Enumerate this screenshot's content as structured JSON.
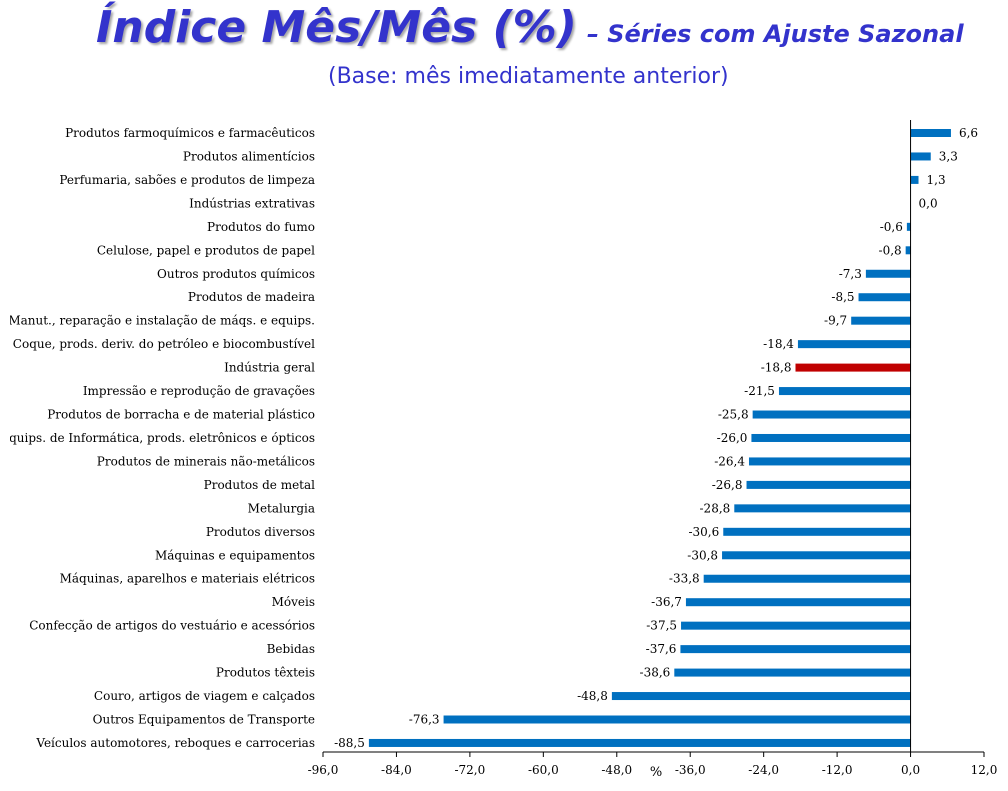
{
  "header": {
    "title": "Índice Mês/Mês (%)",
    "title_suffix": "– Séries com Ajuste Sazonal",
    "subtitle": "(Base: mês imediatamente anterior)"
  },
  "chart_data": {
    "type": "bar",
    "orientation": "horizontal",
    "categories": [
      "Produtos farmoquímicos e farmacêuticos",
      "Produtos alimentícios",
      "Perfumaria, sabões e produtos de limpeza",
      "Indústrias extrativas",
      "Produtos do fumo",
      "Celulose, papel e produtos de papel",
      "Outros produtos químicos",
      "Produtos de madeira",
      "Manut., reparação e instalação de máqs. e equips.",
      "Coque, prods. deriv. do petróleo e biocombustível",
      "Indústria geral",
      "Impressão e reprodução de gravações",
      "Produtos de borracha e de material plástico",
      "Equips. de Informática, prods. eletrônicos e ópticos",
      "Produtos de minerais não-metálicos",
      "Produtos de metal",
      "Metalurgia",
      "Produtos diversos",
      "Máquinas e equipamentos",
      "Máquinas, aparelhos e materiais elétricos",
      "Móveis",
      "Confecção de artigos do vestuário e acessórios",
      "Bebidas",
      "Produtos têxteis",
      "Couro, artigos de viagem e calçados",
      "Outros Equipamentos de Transporte",
      "Veículos automotores, reboques e carrocerias"
    ],
    "values": [
      6.6,
      3.3,
      1.3,
      0.0,
      -0.6,
      -0.8,
      -7.3,
      -8.5,
      -9.7,
      -18.4,
      -18.8,
      -21.5,
      -25.8,
      -26.0,
      -26.4,
      -26.8,
      -28.8,
      -30.6,
      -30.8,
      -33.8,
      -36.7,
      -37.5,
      -37.6,
      -38.6,
      -48.8,
      -76.3,
      -88.5
    ],
    "value_labels": [
      "6,6",
      "3,3",
      "1,3",
      "0,0",
      "-0,6",
      "-0,8",
      "-7,3",
      "-8,5",
      "-9,7",
      "-18,4",
      "-18,8",
      "-21,5",
      "-25,8",
      "-26,0",
      "-26,4",
      "-26,8",
      "-28,8",
      "-30,6",
      "-30,8",
      "-33,8",
      "-36,7",
      "-37,5",
      "-37,6",
      "-38,6",
      "-48,8",
      "-76,3",
      "-88,5"
    ],
    "highlight_index": 10,
    "colors": {
      "bar": "#0070c0",
      "highlight": "#c00000",
      "axis": "#000000"
    },
    "xlim": [
      -96,
      12
    ],
    "xticks": [
      -96,
      -84,
      -72,
      -60,
      -48,
      -36,
      -24,
      -12,
      0,
      12
    ],
    "xtick_labels": [
      "-96,0",
      "-84,0",
      "-72,0",
      "-60,0",
      "-48,0",
      "-36,0",
      "-24,0",
      "-12,0",
      "0,0",
      "12,0"
    ],
    "xlabel": "%",
    "grid": false,
    "legend": "none"
  }
}
